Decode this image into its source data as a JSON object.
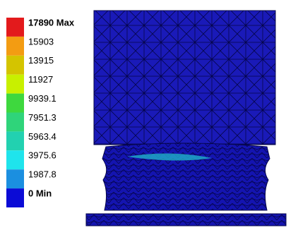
{
  "legend": {
    "entries": [
      {
        "label": "17890 Max",
        "color": "#e31a1c"
      },
      {
        "label": "15903",
        "color": "#f39c12"
      },
      {
        "label": "13915",
        "color": "#d4c400"
      },
      {
        "label": "11927",
        "color": "#c8f000"
      },
      {
        "label": "9939.1",
        "color": "#3ed83e"
      },
      {
        "label": "7951.3",
        "color": "#2fd47a"
      },
      {
        "label": "5963.4",
        "color": "#22d1b0"
      },
      {
        "label": "3975.6",
        "color": "#1fe4ec"
      },
      {
        "label": "1987.8",
        "color": "#1b8fe0"
      },
      {
        "label": "0 Min",
        "color": "#0b0bd6"
      }
    ]
  }
}
